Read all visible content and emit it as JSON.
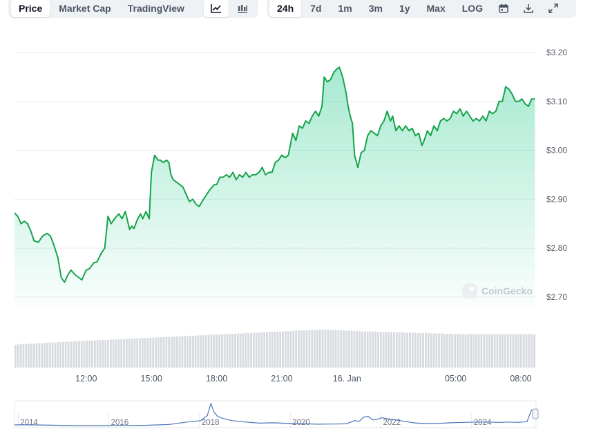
{
  "tabs": {
    "view": [
      {
        "label": "Price",
        "active": true
      },
      {
        "label": "Market Cap",
        "active": false
      },
      {
        "label": "TradingView",
        "active": false
      }
    ],
    "chart_icons": [
      "line-chart-icon",
      "candlestick-icon"
    ],
    "ranges": [
      {
        "label": "24h",
        "active": true
      },
      {
        "label": "7d",
        "active": false
      },
      {
        "label": "1m",
        "active": false
      },
      {
        "label": "3m",
        "active": false
      },
      {
        "label": "1y",
        "active": false
      },
      {
        "label": "Max",
        "active": false
      },
      {
        "label": "LOG",
        "active": false
      }
    ],
    "tool_icons": [
      "calendar-icon",
      "download-icon",
      "expand-icon"
    ]
  },
  "watermark": {
    "text": "CoinGecko"
  },
  "colors": {
    "line": "#16a34a",
    "area_top": "#16c784",
    "volume": "#d7dbe0",
    "navigator": "#4a75b8"
  },
  "chart_data": {
    "type": "area",
    "xlabel": "",
    "ylabel": "",
    "yticks": [
      "$2.70",
      "$2.80",
      "$2.90",
      "$3.00",
      "$3.10",
      "$3.20"
    ],
    "ylim": [
      2.68,
      3.2
    ],
    "xticks": [
      {
        "label": "12:00",
        "hour": 12
      },
      {
        "label": "15:00",
        "hour": 15
      },
      {
        "label": "18:00",
        "hour": 18
      },
      {
        "label": "21:00",
        "hour": 21
      },
      {
        "label": "16. Jan",
        "hour": 24
      },
      {
        "label": "05:00",
        "hour": 29
      },
      {
        "label": "08:00",
        "hour": 32
      }
    ],
    "xrange_hours": [
      8.7,
      32.7
    ],
    "series": [
      {
        "x": [
          8.7,
          8.85,
          9.0,
          9.15,
          9.3,
          9.45,
          9.6,
          9.8,
          10.0,
          10.2,
          10.35,
          10.5,
          10.7,
          10.85,
          11.0,
          11.15,
          11.3,
          11.5,
          11.65,
          11.8,
          12.0,
          12.15,
          12.35,
          12.5,
          12.7,
          12.85,
          13.0,
          13.15,
          13.3,
          13.5,
          13.65,
          13.8,
          14.0,
          14.1,
          14.2,
          14.35,
          14.5,
          14.6,
          14.75,
          14.9,
          15.0,
          15.15,
          15.3,
          15.4,
          15.55,
          15.7,
          15.8,
          15.9,
          16.0,
          16.15,
          16.3,
          16.45,
          16.6,
          16.75,
          16.9,
          17.05,
          17.2,
          17.4,
          17.55,
          17.7,
          17.9,
          18.0,
          18.15,
          18.3,
          18.45,
          18.6,
          18.75,
          18.9,
          19.05,
          19.2,
          19.35,
          19.5,
          19.65,
          19.8,
          19.95,
          20.1,
          20.25,
          20.4,
          20.55,
          20.7,
          20.85,
          21.0,
          21.15,
          21.3,
          21.5,
          21.65,
          21.8,
          21.95,
          22.1,
          22.25,
          22.4,
          22.55,
          22.7,
          22.85,
          22.95,
          23.1,
          23.25,
          23.4,
          23.5,
          23.65,
          23.8,
          23.95,
          24.05,
          24.15,
          24.25,
          24.35,
          24.5,
          24.65,
          24.8,
          24.95,
          25.1,
          25.25,
          25.4,
          25.55,
          25.7,
          25.85,
          26.0,
          26.1,
          26.25,
          26.4,
          26.55,
          26.7,
          26.85,
          27.0,
          27.15,
          27.3,
          27.45,
          27.55,
          27.7,
          27.85,
          28.0,
          28.15,
          28.3,
          28.45,
          28.6,
          28.75,
          28.9,
          29.05,
          29.2,
          29.35,
          29.5,
          29.65,
          29.8,
          29.95,
          30.1,
          30.25,
          30.4,
          30.55,
          30.7,
          30.85,
          31.0,
          31.15,
          31.3,
          31.45,
          31.6,
          31.75,
          31.9,
          32.05,
          32.2,
          32.35,
          32.5,
          32.65
        ],
        "y": [
          2.872,
          2.865,
          2.85,
          2.855,
          2.85,
          2.835,
          2.815,
          2.812,
          2.825,
          2.83,
          2.825,
          2.808,
          2.78,
          2.74,
          2.73,
          2.745,
          2.755,
          2.745,
          2.74,
          2.735,
          2.755,
          2.758,
          2.77,
          2.772,
          2.79,
          2.8,
          2.865,
          2.85,
          2.86,
          2.87,
          2.86,
          2.875,
          2.838,
          2.845,
          2.84,
          2.858,
          2.87,
          2.86,
          2.875,
          2.86,
          2.955,
          2.99,
          2.98,
          2.98,
          2.975,
          2.98,
          2.975,
          2.95,
          2.94,
          2.935,
          2.93,
          2.925,
          2.91,
          2.895,
          2.9,
          2.89,
          2.885,
          2.9,
          2.91,
          2.92,
          2.93,
          2.93,
          2.945,
          2.945,
          2.95,
          2.945,
          2.955,
          2.94,
          2.95,
          2.945,
          2.955,
          2.945,
          2.95,
          2.95,
          2.955,
          2.965,
          2.95,
          2.955,
          2.955,
          2.975,
          2.98,
          2.99,
          2.985,
          2.99,
          3.035,
          3.02,
          3.05,
          3.045,
          3.06,
          3.055,
          3.07,
          3.08,
          3.07,
          3.09,
          3.15,
          3.14,
          3.145,
          3.16,
          3.165,
          3.17,
          3.15,
          3.12,
          3.09,
          3.07,
          3.055,
          2.99,
          2.965,
          2.995,
          3.0,
          3.03,
          3.04,
          3.035,
          3.03,
          3.05,
          3.06,
          3.08,
          3.06,
          3.07,
          3.04,
          3.05,
          3.04,
          3.05,
          3.04,
          3.045,
          3.03,
          3.035,
          3.01,
          3.02,
          3.04,
          3.03,
          3.05,
          3.04,
          3.06,
          3.065,
          3.06,
          3.065,
          3.08,
          3.075,
          3.085,
          3.07,
          3.08,
          3.07,
          3.06,
          3.065,
          3.06,
          3.07,
          3.06,
          3.08,
          3.075,
          3.08,
          3.1,
          3.1,
          3.13,
          3.125,
          3.115,
          3.1,
          3.1,
          3.105,
          3.095,
          3.09,
          3.105,
          3.105
        ]
      }
    ],
    "volume": [
      60,
      61,
      62,
      63,
      62,
      63,
      63,
      63,
      64,
      64,
      64,
      65,
      65,
      66,
      66,
      66,
      67,
      67,
      67,
      68,
      68,
      68,
      69,
      69,
      70,
      70,
      70,
      71,
      71,
      71,
      72,
      72,
      72,
      73,
      73,
      73,
      74,
      74,
      74,
      75,
      75,
      75,
      76,
      76,
      76,
      77,
      77,
      77,
      78,
      78,
      78,
      79,
      79,
      79,
      80,
      80,
      80,
      81,
      81,
      81,
      82,
      82,
      82,
      83,
      83,
      83,
      84,
      84,
      84,
      85,
      85,
      85,
      86,
      86,
      86,
      87,
      87,
      87,
      88,
      88,
      88,
      89,
      89,
      89,
      90,
      90,
      90,
      91,
      91,
      91,
      92,
      92,
      92,
      93,
      93,
      93,
      94,
      94,
      94,
      95,
      95,
      95,
      96,
      96,
      96,
      97,
      97,
      97,
      98,
      98,
      98,
      99,
      99,
      99,
      100,
      100,
      100,
      100,
      100,
      99,
      99,
      99,
      98,
      98,
      98,
      97,
      97,
      97,
      96,
      96,
      96,
      95,
      95,
      95,
      95,
      95,
      95,
      94,
      94,
      94,
      94,
      94,
      93,
      93,
      93,
      93,
      93,
      92,
      92,
      92,
      92,
      92,
      91,
      91,
      91,
      91,
      91,
      90,
      90,
      90,
      90,
      90,
      89,
      89,
      89,
      89,
      89,
      89,
      88,
      88,
      88,
      88,
      88,
      88,
      88,
      88,
      88,
      88,
      88,
      88,
      88,
      88,
      88,
      88,
      88,
      88,
      88,
      88,
      88,
      88,
      88,
      88,
      88,
      88,
      88,
      88,
      88
    ],
    "navigator": {
      "labels": [
        "2014",
        "2016",
        "2018",
        "2020",
        "2022",
        "2024"
      ],
      "x": [
        2013.6,
        2014.0,
        2014.5,
        2015.0,
        2015.5,
        2016.0,
        2016.5,
        2017.0,
        2017.4,
        2017.7,
        2017.85,
        2017.93,
        2018.0,
        2018.08,
        2018.2,
        2018.4,
        2018.7,
        2019.0,
        2019.3,
        2019.5,
        2019.7,
        2020.0,
        2020.3,
        2020.6,
        2020.9,
        2021.0,
        2021.1,
        2021.2,
        2021.3,
        2021.4,
        2021.5,
        2021.6,
        2021.7,
        2021.8,
        2021.9,
        2022.0,
        2022.2,
        2022.4,
        2022.6,
        2022.9,
        2023.2,
        2023.5,
        2023.8,
        2024.0,
        2024.3,
        2024.5,
        2024.7,
        2024.9,
        2025.0,
        2025.05
      ],
      "y": [
        0.2,
        0.2,
        0.15,
        0.1,
        0.1,
        0.12,
        0.15,
        0.25,
        0.6,
        0.8,
        1.5,
        3.2,
        2.0,
        1.4,
        1.1,
        0.8,
        0.6,
        0.45,
        0.5,
        0.45,
        0.4,
        0.35,
        0.3,
        0.32,
        0.35,
        0.55,
        0.8,
        0.7,
        1.3,
        1.4,
        0.9,
        1.0,
        1.2,
        1.1,
        1.0,
        0.9,
        0.7,
        0.5,
        0.4,
        0.4,
        0.5,
        0.55,
        0.6,
        0.6,
        0.55,
        0.6,
        0.55,
        0.65,
        2.3,
        2.1
      ]
    }
  }
}
